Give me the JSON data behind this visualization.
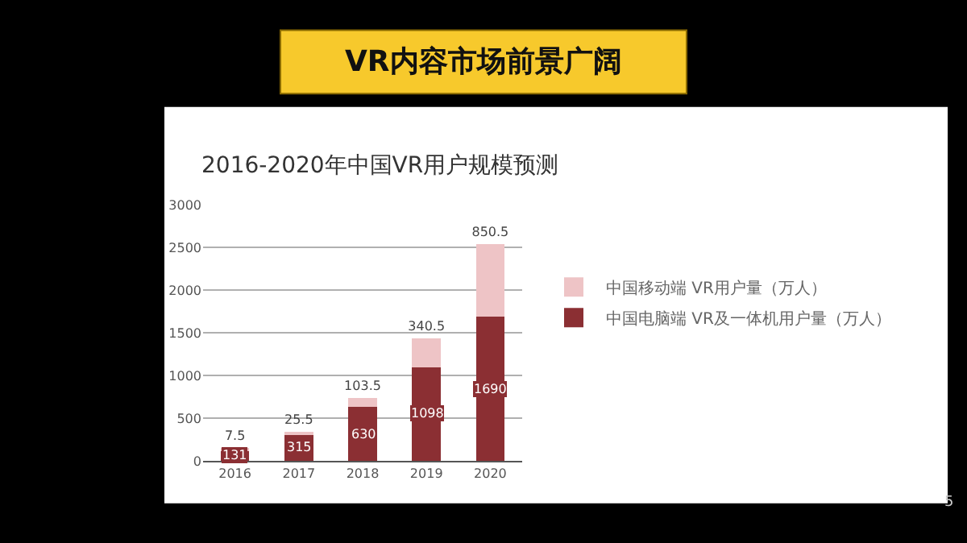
{
  "chart_data": {
    "type": "bar",
    "title": "VR内容市场前景广阔",
    "subtitle": "2016-2020年中国VR用户规模预测",
    "categories": [
      "2016",
      "2017",
      "2018",
      "2019",
      "2020"
    ],
    "series": [
      {
        "name": "中国电脑端 VR及一体机用户量（万人）",
        "color": "#8b2f33",
        "values": [
          131,
          315,
          630,
          1098,
          1690
        ]
      },
      {
        "name": "中国移动端 VR用户量（万人）",
        "color": "#eec4c6",
        "values": [
          7.5,
          25.5,
          103.5,
          340.5,
          850.5
        ]
      }
    ],
    "stacked": true,
    "data_labels": true,
    "ylim": [
      0,
      3000
    ],
    "yticks": [
      0,
      500,
      1000,
      1500,
      2000,
      2500,
      3000
    ],
    "grid": "y",
    "legend": "right",
    "annotations": [
      "5"
    ]
  }
}
